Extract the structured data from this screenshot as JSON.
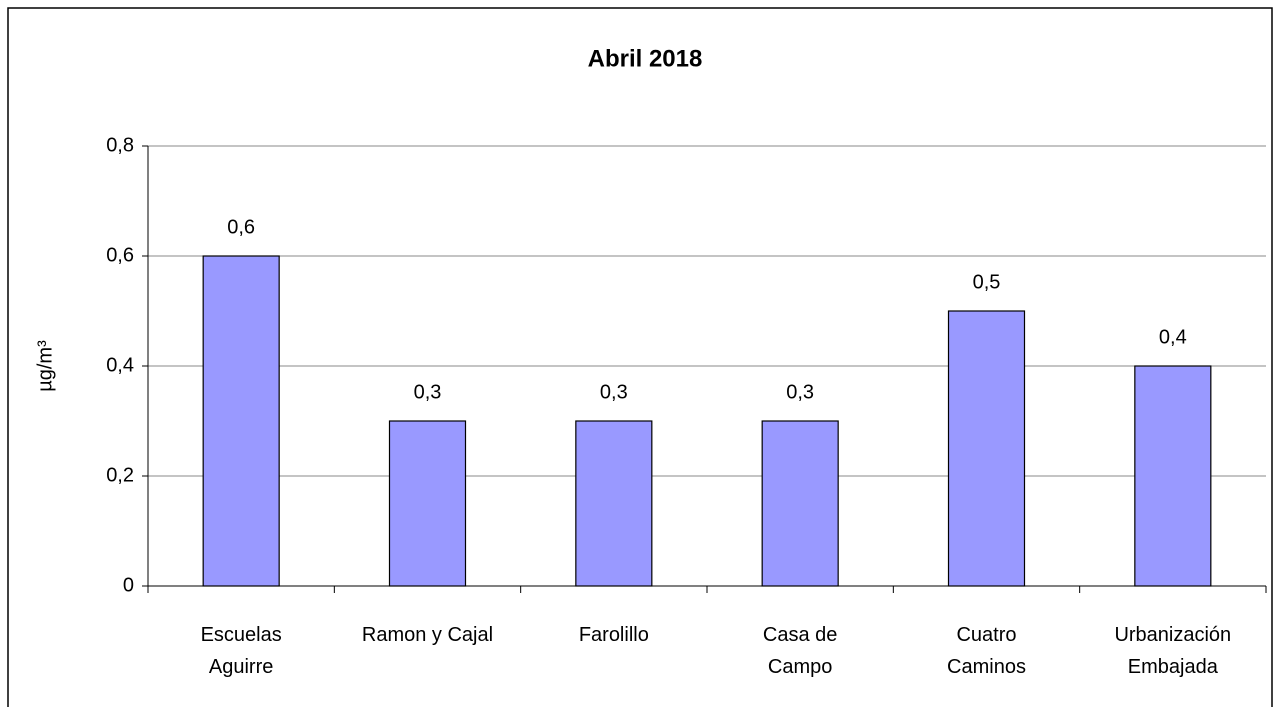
{
  "chart_data": {
    "type": "bar",
    "title": "Abril 2018",
    "y_label": "µg/m³",
    "categories": [
      "Escuelas\nAguirre",
      "Ramon y Cajal",
      "Farolillo",
      "Casa de\nCampo",
      "Cuatro\nCaminos",
      "Urbanización\nEmbajada"
    ],
    "values": [
      0.6,
      0.3,
      0.3,
      0.3,
      0.5,
      0.4
    ],
    "value_labels": [
      "0,6",
      "0,3",
      "0,3",
      "0,3",
      "0,5",
      "0,4"
    ],
    "color": "#9999ff",
    "ylim": [
      0,
      0.8
    ],
    "yticks": [
      0,
      {
        "value": 0.2,
        "label": "0,2"
      },
      {
        "value": 0.4,
        "label": "0,4"
      },
      {
        "value": 0.6,
        "label": "0,6"
      },
      {
        "value": 0.8,
        "label": "0,8"
      }
    ],
    "grid": true
  }
}
